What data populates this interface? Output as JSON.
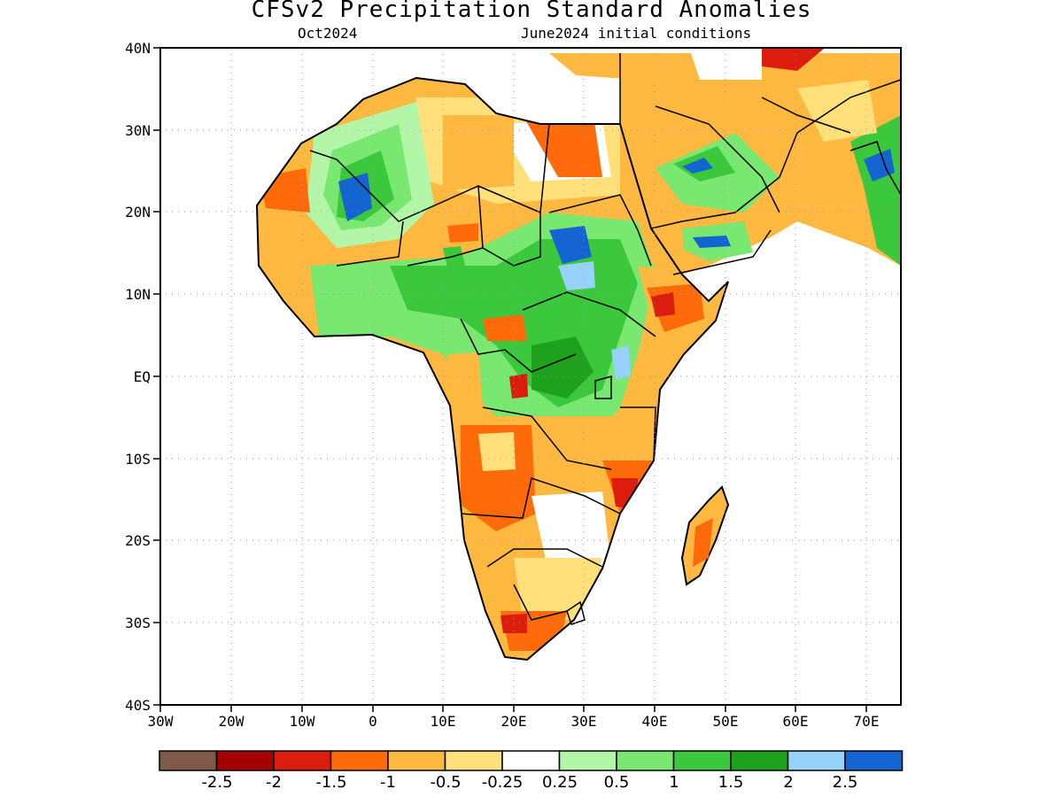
{
  "header": {
    "title": "CFSv2 Precipitation Standard Anomalies",
    "lead_month": "Oct2024",
    "init_conditions": "June2024 initial conditions"
  },
  "axes": {
    "lat_ticks": [
      "40N",
      "30N",
      "20N",
      "10N",
      "EQ",
      "10S",
      "20S",
      "30S",
      "40S"
    ],
    "lon_ticks": [
      "30W",
      "20W",
      "10W",
      "0",
      "10E",
      "20E",
      "30E",
      "40E",
      "50E",
      "60E",
      "70E"
    ]
  },
  "colorbar": {
    "colors": [
      "#7f5a4a",
      "#a50000",
      "#dc1c0c",
      "#ff6a0a",
      "#ffb840",
      "#ffe07a",
      "#ffffff",
      "#b4f6a8",
      "#78e870",
      "#3cc83c",
      "#1ea21e",
      "#96d2fa",
      "#1464d2"
    ],
    "labels": [
      "-2.5",
      "-2",
      "-1.5",
      "-1",
      "-0.5",
      "-0.25",
      "0.25",
      "0.5",
      "1",
      "1.5",
      "2",
      "2.5"
    ]
  },
  "map_data": {
    "region": "Africa and Middle East",
    "projection": "lat-lon",
    "lon_range": [
      -30,
      75
    ],
    "lat_range": [
      -40,
      40
    ],
    "variable": "precipitation standard anomaly",
    "gridlines": "dotted"
  }
}
